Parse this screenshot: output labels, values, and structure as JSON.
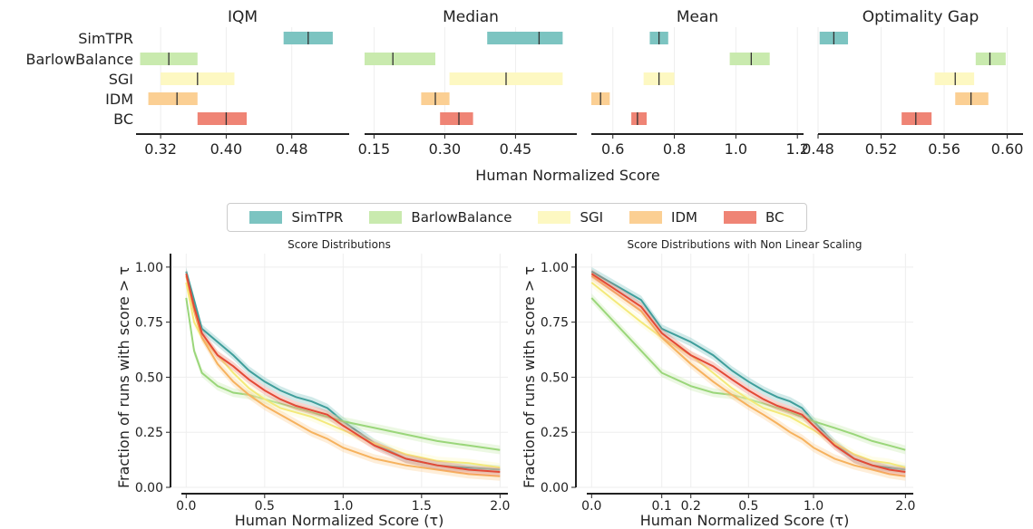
{
  "colors": {
    "SimTPR": "#7cc4c1",
    "BarlowBalance": "#c9eaae",
    "SGI": "#fdf8c2",
    "IDM": "#fbcf93",
    "BC": "#ef8475"
  },
  "legend": {
    "placement": "center",
    "items": [
      "SimTPR",
      "BarlowBalance",
      "SGI",
      "IDM",
      "BC"
    ]
  },
  "chart_data": [
    {
      "type": "interval",
      "title": "IQM",
      "methods": [
        "SimTPR",
        "BarlowBalance",
        "SGI",
        "IDM",
        "BC"
      ],
      "xlim": [
        0.29,
        0.55
      ],
      "xticks": [
        "0.32",
        "0.40",
        "0.48"
      ],
      "xtick_values": [
        0.32,
        0.4,
        0.48
      ],
      "intervals": [
        {
          "method": "SimTPR",
          "low": 0.47,
          "point": 0.5,
          "high": 0.53
        },
        {
          "method": "BarlowBalance",
          "low": 0.295,
          "point": 0.33,
          "high": 0.365
        },
        {
          "method": "SGI",
          "low": 0.32,
          "point": 0.365,
          "high": 0.41
        },
        {
          "method": "IDM",
          "low": 0.305,
          "point": 0.34,
          "high": 0.365
        },
        {
          "method": "BC",
          "low": 0.365,
          "point": 0.4,
          "high": 0.425
        }
      ]
    },
    {
      "type": "interval",
      "title": "Median",
      "methods": [
        "SimTPR",
        "BarlowBalance",
        "SGI",
        "IDM",
        "BC"
      ],
      "xlim": [
        0.13,
        0.58
      ],
      "xticks": [
        "0.15",
        "0.30",
        "0.45"
      ],
      "xtick_values": [
        0.15,
        0.3,
        0.45
      ],
      "intervals": [
        {
          "method": "SimTPR",
          "low": 0.39,
          "point": 0.5,
          "high": 0.55
        },
        {
          "method": "BarlowBalance",
          "low": 0.13,
          "point": 0.19,
          "high": 0.28
        },
        {
          "method": "SGI",
          "low": 0.31,
          "point": 0.43,
          "high": 0.55
        },
        {
          "method": "IDM",
          "low": 0.25,
          "point": 0.28,
          "high": 0.31
        },
        {
          "method": "BC",
          "low": 0.29,
          "point": 0.33,
          "high": 0.36
        }
      ]
    },
    {
      "type": "interval",
      "title": "Mean",
      "methods": [
        "SimTPR",
        "BarlowBalance",
        "SGI",
        "IDM",
        "BC"
      ],
      "xlim": [
        0.53,
        1.22
      ],
      "xticks": [
        "0.6",
        "0.8",
        "1.0",
        "1.2"
      ],
      "xtick_values": [
        0.6,
        0.8,
        1.0,
        1.2
      ],
      "intervals": [
        {
          "method": "SimTPR",
          "low": 0.72,
          "point": 0.75,
          "high": 0.78
        },
        {
          "method": "BarlowBalance",
          "low": 0.98,
          "point": 1.05,
          "high": 1.11
        },
        {
          "method": "SGI",
          "low": 0.7,
          "point": 0.75,
          "high": 0.8
        },
        {
          "method": "IDM",
          "low": 0.53,
          "point": 0.56,
          "high": 0.59
        },
        {
          "method": "BC",
          "low": 0.66,
          "point": 0.68,
          "high": 0.71
        }
      ]
    },
    {
      "type": "interval",
      "title": "Optimality Gap",
      "methods": [
        "SimTPR",
        "BarlowBalance",
        "SGI",
        "IDM",
        "BC"
      ],
      "xlim": [
        0.48,
        0.61
      ],
      "xticks": [
        "0.48",
        "0.52",
        "0.56",
        "0.60"
      ],
      "xtick_values": [
        0.48,
        0.52,
        0.56,
        0.6
      ],
      "intervals": [
        {
          "method": "SimTPR",
          "low": 0.481,
          "point": 0.49,
          "high": 0.499
        },
        {
          "method": "BarlowBalance",
          "low": 0.58,
          "point": 0.589,
          "high": 0.599
        },
        {
          "method": "SGI",
          "low": 0.554,
          "point": 0.567,
          "high": 0.579
        },
        {
          "method": "IDM",
          "low": 0.567,
          "point": 0.577,
          "high": 0.588
        },
        {
          "method": "BC",
          "low": 0.533,
          "point": 0.542,
          "high": 0.552
        }
      ]
    },
    {
      "type": "line",
      "title": "Score Distributions",
      "xlabel": "Human Normalized Score (τ)",
      "ylabel": "Fraction of runs with score > τ",
      "xlim": [
        -0.1,
        2.05
      ],
      "ylim": [
        0.0,
        1.02
      ],
      "xticks": [
        "0.0",
        "0.5",
        "1.0",
        "1.5",
        "2.0"
      ],
      "xtick_values": [
        0.0,
        0.5,
        1.0,
        1.5,
        2.0
      ],
      "yticks": [
        "0.00",
        "0.25",
        "0.50",
        "0.75",
        "1.00"
      ],
      "ytick_values": [
        0.0,
        0.25,
        0.5,
        0.75,
        1.0
      ],
      "grid": true,
      "x": [
        0.0,
        0.05,
        0.1,
        0.2,
        0.3,
        0.4,
        0.5,
        0.6,
        0.7,
        0.8,
        0.9,
        1.0,
        1.2,
        1.4,
        1.6,
        1.8,
        2.0
      ],
      "series": [
        {
          "name": "SimTPR",
          "values": [
            0.98,
            0.85,
            0.72,
            0.66,
            0.6,
            0.53,
            0.48,
            0.44,
            0.41,
            0.39,
            0.36,
            0.3,
            0.2,
            0.13,
            0.1,
            0.09,
            0.08
          ]
        },
        {
          "name": "BarlowBalance",
          "values": [
            0.86,
            0.62,
            0.52,
            0.46,
            0.43,
            0.42,
            0.4,
            0.38,
            0.36,
            0.34,
            0.32,
            0.3,
            0.27,
            0.24,
            0.21,
            0.19,
            0.17
          ]
        },
        {
          "name": "SGI",
          "values": [
            0.93,
            0.75,
            0.68,
            0.6,
            0.52,
            0.45,
            0.4,
            0.36,
            0.34,
            0.32,
            0.29,
            0.26,
            0.2,
            0.15,
            0.12,
            0.11,
            0.09
          ]
        },
        {
          "name": "IDM",
          "values": [
            0.96,
            0.8,
            0.68,
            0.56,
            0.48,
            0.42,
            0.37,
            0.33,
            0.29,
            0.25,
            0.22,
            0.18,
            0.13,
            0.1,
            0.08,
            0.06,
            0.05
          ]
        },
        {
          "name": "BC",
          "values": [
            0.97,
            0.82,
            0.7,
            0.6,
            0.55,
            0.49,
            0.44,
            0.4,
            0.37,
            0.35,
            0.33,
            0.28,
            0.19,
            0.13,
            0.1,
            0.08,
            0.07
          ]
        }
      ]
    },
    {
      "type": "line",
      "title": "Score Distributions with Non Linear Scaling",
      "xlabel": "Human Normalized Score (τ)",
      "ylabel": "Fraction of runs with score > τ",
      "xlim": [
        -0.1,
        2.05
      ],
      "ylim": [
        0.0,
        1.02
      ],
      "xticks": [
        "0.0",
        "0.1",
        "0.2",
        "0.5",
        "1.0",
        "2.0"
      ],
      "xtick_values": [
        0.0,
        0.1,
        0.2,
        0.5,
        1.0,
        2.0
      ],
      "yticks": [
        "0.00",
        "0.25",
        "0.50",
        "0.75",
        "1.00"
      ],
      "ytick_values": [
        0.0,
        0.25,
        0.5,
        0.75,
        1.0
      ],
      "grid": true,
      "x": [
        0.0,
        0.05,
        0.1,
        0.2,
        0.3,
        0.4,
        0.5,
        0.6,
        0.7,
        0.8,
        0.9,
        1.0,
        1.2,
        1.4,
        1.6,
        1.8,
        2.0
      ],
      "series": [
        {
          "name": "SimTPR",
          "values": [
            0.98,
            0.85,
            0.72,
            0.66,
            0.6,
            0.53,
            0.48,
            0.44,
            0.41,
            0.39,
            0.36,
            0.3,
            0.2,
            0.13,
            0.1,
            0.09,
            0.08
          ]
        },
        {
          "name": "BarlowBalance",
          "values": [
            0.86,
            0.62,
            0.52,
            0.46,
            0.43,
            0.42,
            0.4,
            0.38,
            0.36,
            0.34,
            0.32,
            0.3,
            0.27,
            0.24,
            0.21,
            0.19,
            0.17
          ]
        },
        {
          "name": "SGI",
          "values": [
            0.93,
            0.75,
            0.68,
            0.6,
            0.52,
            0.45,
            0.4,
            0.36,
            0.34,
            0.32,
            0.29,
            0.26,
            0.2,
            0.15,
            0.12,
            0.11,
            0.09
          ]
        },
        {
          "name": "IDM",
          "values": [
            0.96,
            0.8,
            0.68,
            0.56,
            0.48,
            0.42,
            0.37,
            0.33,
            0.29,
            0.25,
            0.22,
            0.18,
            0.13,
            0.1,
            0.08,
            0.06,
            0.05
          ]
        },
        {
          "name": "BC",
          "values": [
            0.97,
            0.82,
            0.7,
            0.6,
            0.55,
            0.49,
            0.44,
            0.4,
            0.37,
            0.35,
            0.33,
            0.28,
            0.19,
            0.13,
            0.1,
            0.08,
            0.07
          ]
        }
      ]
    }
  ],
  "shared_xlabel": "Human Normalized Score"
}
